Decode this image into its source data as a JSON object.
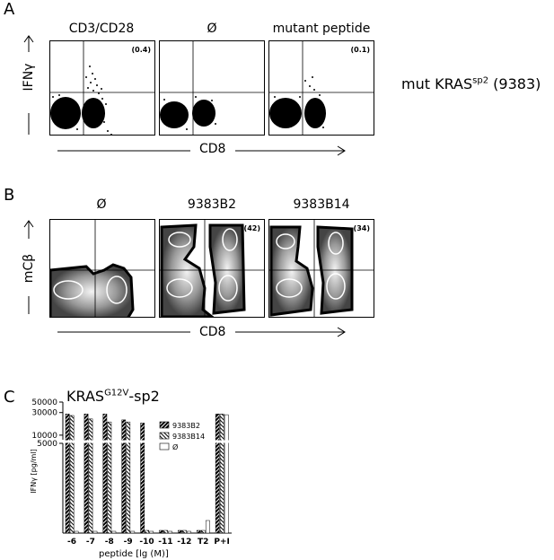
{
  "panels": {
    "a": {
      "letter": "A",
      "col_titles": [
        "CD3/CD28",
        "Ø",
        "mutant peptide"
      ],
      "percents": [
        "(0.4)",
        "",
        "(0.1)"
      ],
      "y_label": "IFNγ",
      "x_label": "CD8",
      "side_label": "mut KRAS",
      "side_sup": "sp2",
      "side_suffix": " (9383)"
    },
    "b": {
      "letter": "B",
      "col_titles": [
        "Ø",
        "9383B2",
        "9383B14"
      ],
      "percents": [
        "",
        "(42)",
        "(34)"
      ],
      "y_label": "mCβ",
      "x_label": "CD8"
    },
    "c": {
      "letter": "C",
      "title_main": "KRAS",
      "title_sup": "G12V",
      "title_suffix": "-sp2",
      "y_label": "IFNγ [pg/ml]",
      "x_label": "peptide  [lg (M)]"
    }
  },
  "chart_data": {
    "type": "bar",
    "title": "KRASG12V-sp2",
    "xlabel": "peptide  [lg (M)]",
    "ylabel": "IFNγ [pg/ml]",
    "categories": [
      "-6",
      "-7",
      "-8",
      "-9",
      "-10",
      "-11",
      "-12",
      "T2",
      "P+I"
    ],
    "y_ticks": [
      5000,
      10000,
      30000,
      50000
    ],
    "axis_break": [
      5000,
      8000
    ],
    "series": [
      {
        "name": "9383B2",
        "values": [
          28000,
          28000,
          28000,
          21000,
          18000,
          150,
          150,
          150,
          28000
        ]
      },
      {
        "name": "9383B14",
        "values": [
          26000,
          22000,
          19000,
          19000,
          150,
          150,
          150,
          150,
          28000
        ]
      },
      {
        "name": "Ø",
        "values": [
          100,
          100,
          100,
          100,
          100,
          100,
          100,
          700,
          27000
        ]
      }
    ]
  }
}
